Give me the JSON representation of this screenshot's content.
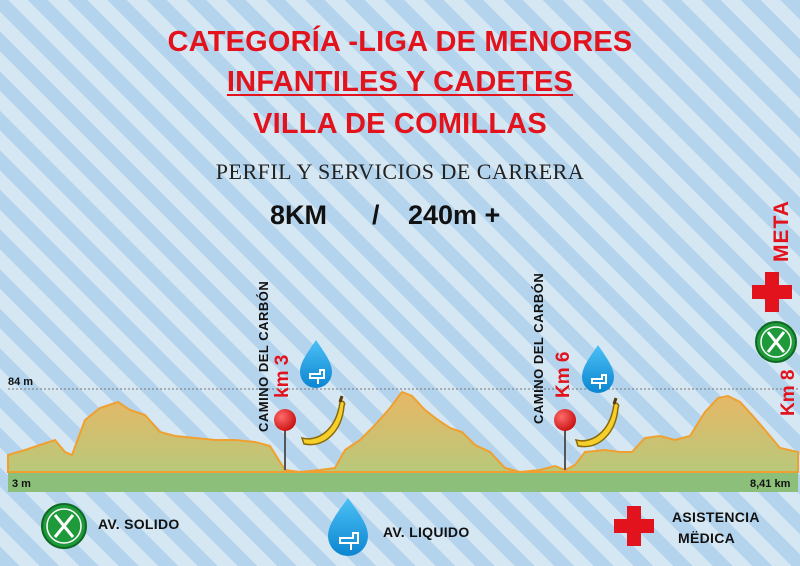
{
  "header": {
    "line1": "CATEGORÍA -LIGA DE MENORES",
    "line2": "INFANTILES Y CADETES",
    "line3": "VILLA DE COMILLAS",
    "subtitle": "PERFIL Y SERVICIOS DE CARRERA",
    "distance": "8KM",
    "separator": "/",
    "elevation_gain": "240m +"
  },
  "profile": {
    "max_label": "84 m",
    "min_label": "3 m",
    "end_label": "8,41 km",
    "fill_color": "#e0b060",
    "line_color": "#f0a030",
    "base_color": "#8cbf7a"
  },
  "markers": [
    {
      "place": "CAMINO DEL CARBÓN",
      "km": "km 3",
      "services": [
        "pin-icon",
        "water-icon",
        "banana-icon"
      ]
    },
    {
      "place": "CAMINO DEL CARBÓN",
      "km": "Km 6",
      "services": [
        "pin-icon",
        "water-icon",
        "banana-icon"
      ]
    }
  ],
  "finish": {
    "label": "META",
    "km": "Km 8",
    "services": [
      "first-aid-icon",
      "food-icon"
    ]
  },
  "legend": {
    "solid": "AV. SOLIDO",
    "liquid": "AV. LIQUIDO",
    "medical_line1": "ASISTENCIA",
    "medical_line2": "MËDICA"
  },
  "colors": {
    "title_red": "#e2131c",
    "green_badge": "#1e9a3a",
    "water_blue": "#1b9be0"
  }
}
